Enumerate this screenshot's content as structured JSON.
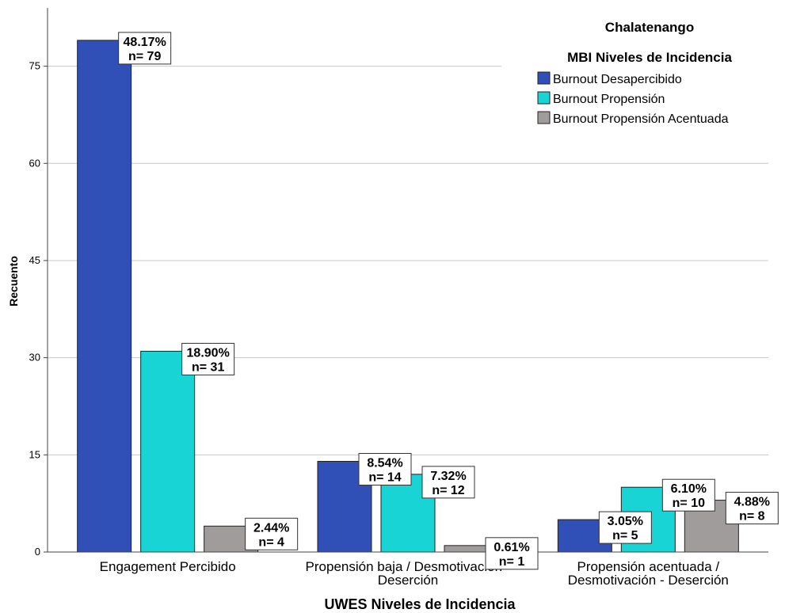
{
  "chart_data": {
    "type": "bar",
    "title": "Chalatenango",
    "xlabel": "UWES Niveles de Incidencia",
    "ylabel": "Recuento",
    "ylim": [
      0,
      84
    ],
    "yticks": [
      0,
      15,
      30,
      45,
      60,
      75
    ],
    "grid": true,
    "legend_title": "MBI Niveles de Incidencia",
    "legend_position": "top-right",
    "categories": [
      [
        "Engagement Percibido"
      ],
      [
        "Propensión baja / Desmotivación -",
        "Deserción"
      ],
      [
        "Propensión acentuada /",
        "Desmotivación - Deserción"
      ]
    ],
    "series": [
      {
        "name": "Burnout Desapercibido",
        "color": "#3050b8",
        "values": [
          79,
          14,
          5
        ],
        "labels": [
          "48.17%",
          "8.54%",
          "3.05%"
        ]
      },
      {
        "name": "Burnout Propensión",
        "color": "#19d4d4",
        "values": [
          31,
          12,
          10
        ],
        "labels": [
          "18.90%",
          "7.32%",
          "6.10%"
        ]
      },
      {
        "name": "Burnout Propensión Acentuada",
        "color": "#a09c9c",
        "values": [
          4,
          1,
          8
        ],
        "labels": [
          "2.44%",
          "0.61%",
          "4.88%"
        ]
      }
    ]
  }
}
